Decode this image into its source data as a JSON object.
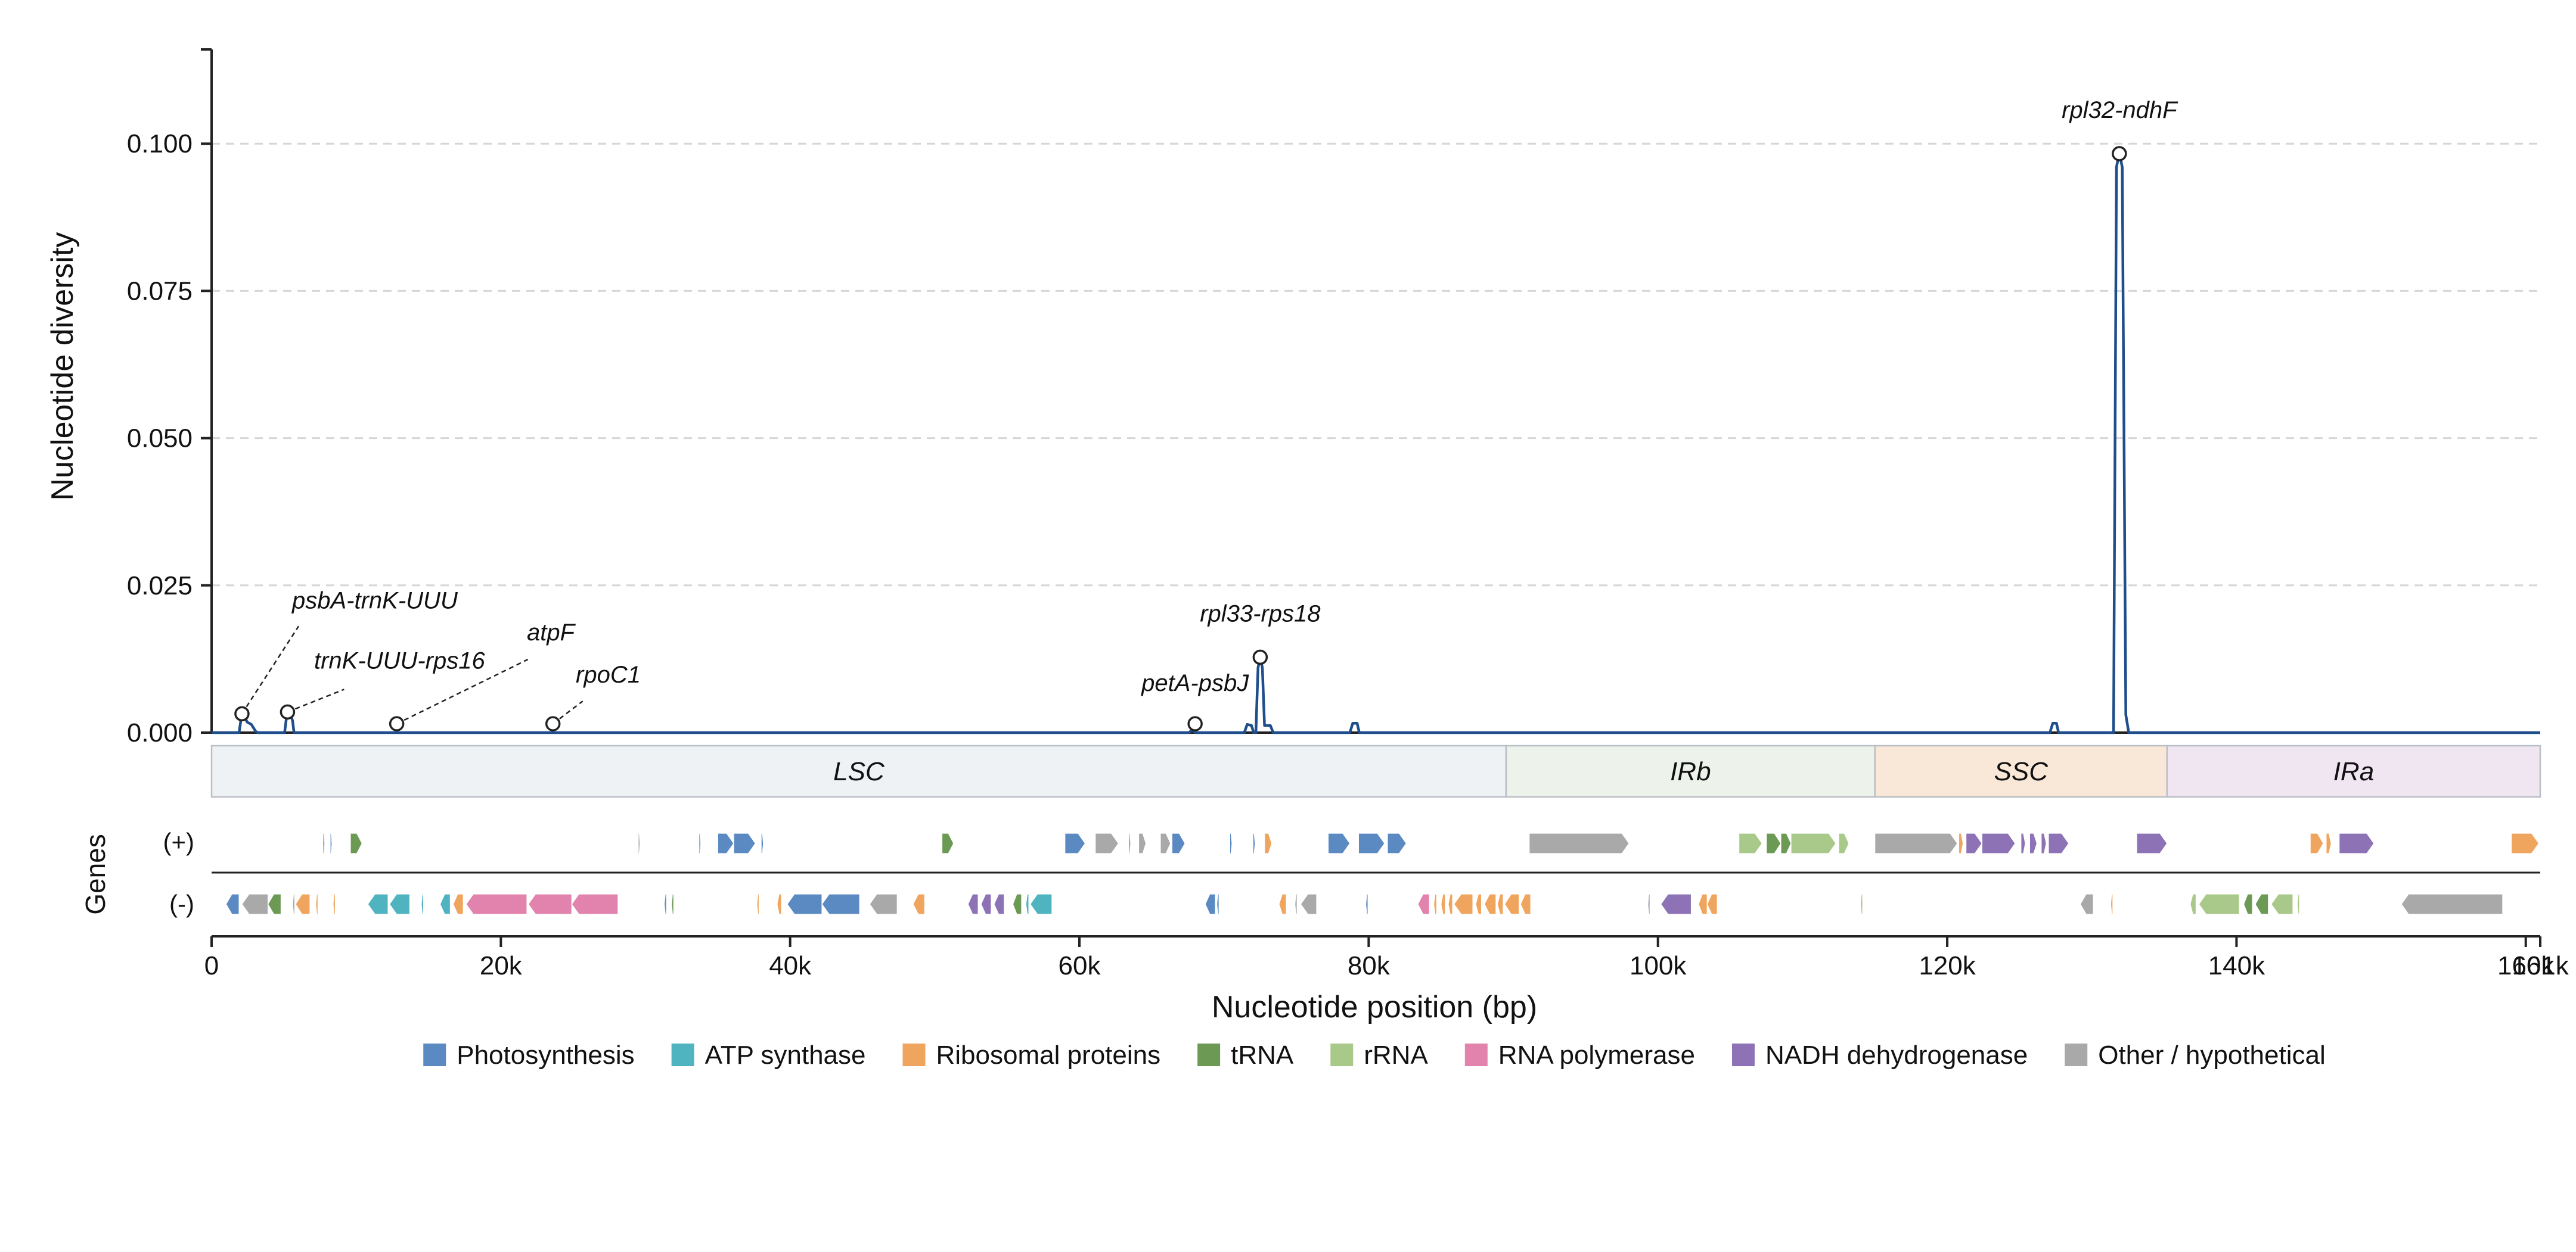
{
  "chart_data": {
    "type": "line",
    "title": "",
    "ylabel": "Nucleotide diversity",
    "xlabel": "Nucleotide position (bp)",
    "genes_label": "Genes",
    "xlim": [
      0,
      161000
    ],
    "ylim": [
      0,
      0.116
    ],
    "yticks": [
      {
        "value": 0.0,
        "label": "0.000"
      },
      {
        "value": 0.025,
        "label": "0.025"
      },
      {
        "value": 0.05,
        "label": "0.050"
      },
      {
        "value": 0.075,
        "label": "0.075"
      },
      {
        "value": 0.1,
        "label": "0.100"
      }
    ],
    "xticks": [
      {
        "value": 0,
        "label": "0"
      },
      {
        "value": 20000,
        "label": "20k"
      },
      {
        "value": 40000,
        "label": "40k"
      },
      {
        "value": 60000,
        "label": "60k"
      },
      {
        "value": 80000,
        "label": "80k"
      },
      {
        "value": 100000,
        "label": "100k"
      },
      {
        "value": 120000,
        "label": "120k"
      },
      {
        "value": 140000,
        "label": "140k"
      },
      {
        "value": 160000,
        "label": "160k"
      },
      {
        "value": 161000,
        "label": "161k"
      }
    ],
    "grid": "horizontal dashed",
    "line_color": "#1f4e8c",
    "series": [
      {
        "points": [
          [
            0,
            0
          ],
          [
            1900,
            0
          ],
          [
            2050,
            0.0025
          ],
          [
            2250,
            0.003
          ],
          [
            2450,
            0.0018
          ],
          [
            2750,
            0.0014
          ],
          [
            3050,
            0.0002
          ],
          [
            3200,
            0
          ],
          [
            5050,
            0
          ],
          [
            5200,
            0.003
          ],
          [
            5400,
            0.0036
          ],
          [
            5600,
            0.002
          ],
          [
            5700,
            0
          ],
          [
            67600,
            0
          ],
          [
            67800,
            0.0006
          ],
          [
            68000,
            0
          ],
          [
            71400,
            0
          ],
          [
            71600,
            0.0014
          ],
          [
            71900,
            0.0012
          ],
          [
            72050,
            0
          ],
          [
            72200,
            0
          ],
          [
            72350,
            0.011
          ],
          [
            72500,
            0.0128
          ],
          [
            72650,
            0.011
          ],
          [
            72800,
            0.0012
          ],
          [
            73200,
            0.0012
          ],
          [
            73400,
            0
          ],
          [
            78700,
            0
          ],
          [
            78900,
            0.0016
          ],
          [
            79200,
            0.0016
          ],
          [
            79350,
            0
          ],
          [
            127100,
            0
          ],
          [
            127300,
            0.0016
          ],
          [
            127550,
            0.0016
          ],
          [
            127700,
            0
          ],
          [
            131500,
            0
          ],
          [
            131700,
            0.096
          ],
          [
            131900,
            0.0985
          ],
          [
            132100,
            0.096
          ],
          [
            132350,
            0.003
          ],
          [
            132550,
            0
          ],
          [
            161000,
            0
          ]
        ]
      }
    ],
    "annotations": [
      {
        "label": "psbA-trnK-UUU",
        "x": 2100,
        "y": 0.0032,
        "leader": true
      },
      {
        "label": "trnK-UUU-rps16",
        "x": 5250,
        "y": 0.0035,
        "leader": true
      },
      {
        "label": "atpF",
        "x": 12800,
        "y": 0.0015,
        "leader": true
      },
      {
        "label": "rpoC1",
        "x": 23600,
        "y": 0.0015,
        "leader": true
      },
      {
        "label": "petA-psbJ",
        "x": 68000,
        "y": 0.0015,
        "leader": false
      },
      {
        "label": "rpl33-rps18",
        "x": 72500,
        "y": 0.0128,
        "leader": false
      },
      {
        "label": "rpl32-ndhF",
        "x": 131900,
        "y": 0.0983,
        "leader": false
      }
    ],
    "regions": [
      {
        "name": "LSC",
        "start": 0,
        "end": 89500,
        "color": "#eef2f5"
      },
      {
        "name": "IRb",
        "start": 89500,
        "end": 115000,
        "color": "#edf3ea"
      },
      {
        "name": "SSC",
        "start": 115000,
        "end": 135200,
        "color": "#f9e7d7"
      },
      {
        "name": "IRa",
        "start": 135200,
        "end": 161000,
        "color": "#f0e6f2"
      }
    ],
    "strand_labels": {
      "plus": "(+)",
      "minus": "(-)"
    },
    "gene_categories": [
      {
        "key": "photo",
        "name": "Photosynthesis",
        "color": "#5b8ac2"
      },
      {
        "key": "atp",
        "name": "ATP synthase",
        "color": "#4fb4c0"
      },
      {
        "key": "ribo",
        "name": "Ribosomal proteins",
        "color": "#f0a55e"
      },
      {
        "key": "trna",
        "name": "tRNA",
        "color": "#6c9a55"
      },
      {
        "key": "rrna",
        "name": "rRNA",
        "color": "#a9c98a"
      },
      {
        "key": "rnap",
        "name": "RNA polymerase",
        "color": "#e283ad"
      },
      {
        "key": "ndh",
        "name": "NADH dehydrogenase",
        "color": "#8d73b6"
      },
      {
        "key": "other",
        "name": "Other / hypothetical",
        "color": "#a9a9a9"
      }
    ],
    "genes": [
      {
        "s": 7700,
        "e": 7800,
        "strand": "+",
        "cat": "photo"
      },
      {
        "s": 8200,
        "e": 8300,
        "strand": "+",
        "cat": "photo"
      },
      {
        "s": 9600,
        "e": 10400,
        "strand": "+",
        "cat": "trna"
      },
      {
        "s": 29500,
        "e": 29600,
        "strand": "+",
        "cat": "other"
      },
      {
        "s": 33700,
        "e": 33800,
        "strand": "+",
        "cat": "photo"
      },
      {
        "s": 35000,
        "e": 36100,
        "strand": "+",
        "cat": "photo"
      },
      {
        "s": 36100,
        "e": 37600,
        "strand": "+",
        "cat": "photo"
      },
      {
        "s": 38000,
        "e": 38150,
        "strand": "+",
        "cat": "photo"
      },
      {
        "s": 50500,
        "e": 51300,
        "strand": "+",
        "cat": "trna"
      },
      {
        "s": 59000,
        "e": 60400,
        "strand": "+",
        "cat": "photo"
      },
      {
        "s": 61100,
        "e": 62700,
        "strand": "+",
        "cat": "other"
      },
      {
        "s": 63400,
        "e": 63550,
        "strand": "+",
        "cat": "other"
      },
      {
        "s": 64100,
        "e": 64600,
        "strand": "+",
        "cat": "other"
      },
      {
        "s": 65600,
        "e": 66300,
        "strand": "+",
        "cat": "other"
      },
      {
        "s": 66400,
        "e": 67300,
        "strand": "+",
        "cat": "photo"
      },
      {
        "s": 70400,
        "e": 70550,
        "strand": "+",
        "cat": "photo"
      },
      {
        "s": 72000,
        "e": 72150,
        "strand": "+",
        "cat": "photo"
      },
      {
        "s": 72800,
        "e": 73300,
        "strand": "+",
        "cat": "ribo"
      },
      {
        "s": 77200,
        "e": 78700,
        "strand": "+",
        "cat": "photo"
      },
      {
        "s": 79300,
        "e": 81100,
        "strand": "+",
        "cat": "photo"
      },
      {
        "s": 81300,
        "e": 82600,
        "strand": "+",
        "cat": "photo"
      },
      {
        "s": 91100,
        "e": 98000,
        "strand": "+",
        "cat": "other"
      },
      {
        "s": 105600,
        "e": 107200,
        "strand": "+",
        "cat": "rrna"
      },
      {
        "s": 107500,
        "e": 108500,
        "strand": "+",
        "cat": "trna"
      },
      {
        "s": 108500,
        "e": 109200,
        "strand": "+",
        "cat": "trna"
      },
      {
        "s": 109200,
        "e": 112300,
        "strand": "+",
        "cat": "rrna"
      },
      {
        "s": 112500,
        "e": 113200,
        "strand": "+",
        "cat": "rrna"
      },
      {
        "s": 115000,
        "e": 120700,
        "strand": "+",
        "cat": "other"
      },
      {
        "s": 120800,
        "e": 121100,
        "strand": "+",
        "cat": "ribo"
      },
      {
        "s": 121300,
        "e": 122400,
        "strand": "+",
        "cat": "ndh"
      },
      {
        "s": 122400,
        "e": 124700,
        "strand": "+",
        "cat": "ndh"
      },
      {
        "s": 125100,
        "e": 125400,
        "strand": "+",
        "cat": "ndh"
      },
      {
        "s": 125700,
        "e": 126200,
        "strand": "+",
        "cat": "ndh"
      },
      {
        "s": 126500,
        "e": 126850,
        "strand": "+",
        "cat": "ndh"
      },
      {
        "s": 127000,
        "e": 128400,
        "strand": "+",
        "cat": "ndh"
      },
      {
        "s": 133100,
        "e": 135200,
        "strand": "+",
        "cat": "ndh"
      },
      {
        "s": 145100,
        "e": 146000,
        "strand": "+",
        "cat": "ribo"
      },
      {
        "s": 146200,
        "e": 146550,
        "strand": "+",
        "cat": "ribo"
      },
      {
        "s": 147100,
        "e": 149500,
        "strand": "+",
        "cat": "ndh"
      },
      {
        "s": 159000,
        "e": 160900,
        "strand": "+",
        "cat": "ribo"
      },
      {
        "s": 1000,
        "e": 1900,
        "strand": "-",
        "cat": "photo"
      },
      {
        "s": 2100,
        "e": 3900,
        "strand": "-",
        "cat": "other"
      },
      {
        "s": 3900,
        "e": 4800,
        "strand": "-",
        "cat": "trna"
      },
      {
        "s": 5600,
        "e": 5750,
        "strand": "-",
        "cat": "other"
      },
      {
        "s": 5800,
        "e": 6800,
        "strand": "-",
        "cat": "ribo"
      },
      {
        "s": 7200,
        "e": 7350,
        "strand": "-",
        "cat": "ribo"
      },
      {
        "s": 8400,
        "e": 8550,
        "strand": "-",
        "cat": "ribo"
      },
      {
        "s": 10800,
        "e": 12200,
        "strand": "-",
        "cat": "atp"
      },
      {
        "s": 12300,
        "e": 13700,
        "strand": "-",
        "cat": "atp"
      },
      {
        "s": 14500,
        "e": 14650,
        "strand": "-",
        "cat": "atp"
      },
      {
        "s": 15800,
        "e": 16500,
        "strand": "-",
        "cat": "atp"
      },
      {
        "s": 16700,
        "e": 17400,
        "strand": "-",
        "cat": "ribo"
      },
      {
        "s": 17600,
        "e": 21800,
        "strand": "-",
        "cat": "rnap"
      },
      {
        "s": 21900,
        "e": 24900,
        "strand": "-",
        "cat": "rnap"
      },
      {
        "s": 24900,
        "e": 28100,
        "strand": "-",
        "cat": "rnap"
      },
      {
        "s": 31300,
        "e": 31450,
        "strand": "-",
        "cat": "photo"
      },
      {
        "s": 31800,
        "e": 31950,
        "strand": "-",
        "cat": "trna"
      },
      {
        "s": 37700,
        "e": 37850,
        "strand": "-",
        "cat": "ribo"
      },
      {
        "s": 39100,
        "e": 39400,
        "strand": "-",
        "cat": "ribo"
      },
      {
        "s": 39800,
        "e": 42200,
        "strand": "-",
        "cat": "photo"
      },
      {
        "s": 42200,
        "e": 44800,
        "strand": "-",
        "cat": "photo"
      },
      {
        "s": 45500,
        "e": 47400,
        "strand": "-",
        "cat": "other"
      },
      {
        "s": 48500,
        "e": 49300,
        "strand": "-",
        "cat": "ribo"
      },
      {
        "s": 52300,
        "e": 53000,
        "strand": "-",
        "cat": "ndh"
      },
      {
        "s": 53200,
        "e": 53900,
        "strand": "-",
        "cat": "ndh"
      },
      {
        "s": 54100,
        "e": 54800,
        "strand": "-",
        "cat": "ndh"
      },
      {
        "s": 55400,
        "e": 56000,
        "strand": "-",
        "cat": "trna"
      },
      {
        "s": 56300,
        "e": 56500,
        "strand": "-",
        "cat": "atp"
      },
      {
        "s": 56600,
        "e": 58100,
        "strand": "-",
        "cat": "atp"
      },
      {
        "s": 68700,
        "e": 69400,
        "strand": "-",
        "cat": "photo"
      },
      {
        "s": 69500,
        "e": 69650,
        "strand": "-",
        "cat": "photo"
      },
      {
        "s": 73800,
        "e": 74300,
        "strand": "-",
        "cat": "ribo"
      },
      {
        "s": 74900,
        "e": 75050,
        "strand": "-",
        "cat": "other"
      },
      {
        "s": 75300,
        "e": 76400,
        "strand": "-",
        "cat": "other"
      },
      {
        "s": 79800,
        "e": 79950,
        "strand": "-",
        "cat": "photo"
      },
      {
        "s": 83400,
        "e": 84200,
        "strand": "-",
        "cat": "rnap"
      },
      {
        "s": 84500,
        "e": 84700,
        "strand": "-",
        "cat": "ribo"
      },
      {
        "s": 85000,
        "e": 85300,
        "strand": "-",
        "cat": "ribo"
      },
      {
        "s": 85500,
        "e": 85800,
        "strand": "-",
        "cat": "ribo"
      },
      {
        "s": 85900,
        "e": 87200,
        "strand": "-",
        "cat": "ribo"
      },
      {
        "s": 87400,
        "e": 87800,
        "strand": "-",
        "cat": "ribo"
      },
      {
        "s": 88000,
        "e": 88800,
        "strand": "-",
        "cat": "ribo"
      },
      {
        "s": 88900,
        "e": 89300,
        "strand": "-",
        "cat": "ribo"
      },
      {
        "s": 89400,
        "e": 90400,
        "strand": "-",
        "cat": "ribo"
      },
      {
        "s": 90500,
        "e": 91200,
        "strand": "-",
        "cat": "ribo"
      },
      {
        "s": 99300,
        "e": 99450,
        "strand": "-",
        "cat": "other"
      },
      {
        "s": 100200,
        "e": 102300,
        "strand": "-",
        "cat": "ndh"
      },
      {
        "s": 102800,
        "e": 103400,
        "strand": "-",
        "cat": "ribo"
      },
      {
        "s": 103400,
        "e": 104100,
        "strand": "-",
        "cat": "ribo"
      },
      {
        "s": 114000,
        "e": 114150,
        "strand": "-",
        "cat": "rrna"
      },
      {
        "s": 129200,
        "e": 130100,
        "strand": "-",
        "cat": "other"
      },
      {
        "s": 131300,
        "e": 131450,
        "strand": "-",
        "cat": "ribo"
      },
      {
        "s": 136800,
        "e": 137200,
        "strand": "-",
        "cat": "rrna"
      },
      {
        "s": 137400,
        "e": 140200,
        "strand": "-",
        "cat": "rrna"
      },
      {
        "s": 140500,
        "e": 141100,
        "strand": "-",
        "cat": "trna"
      },
      {
        "s": 141300,
        "e": 142200,
        "strand": "-",
        "cat": "trna"
      },
      {
        "s": 142400,
        "e": 143900,
        "strand": "-",
        "cat": "rrna"
      },
      {
        "s": 144200,
        "e": 144350,
        "strand": "-",
        "cat": "rrna"
      },
      {
        "s": 151400,
        "e": 158400,
        "strand": "-",
        "cat": "other"
      }
    ]
  }
}
